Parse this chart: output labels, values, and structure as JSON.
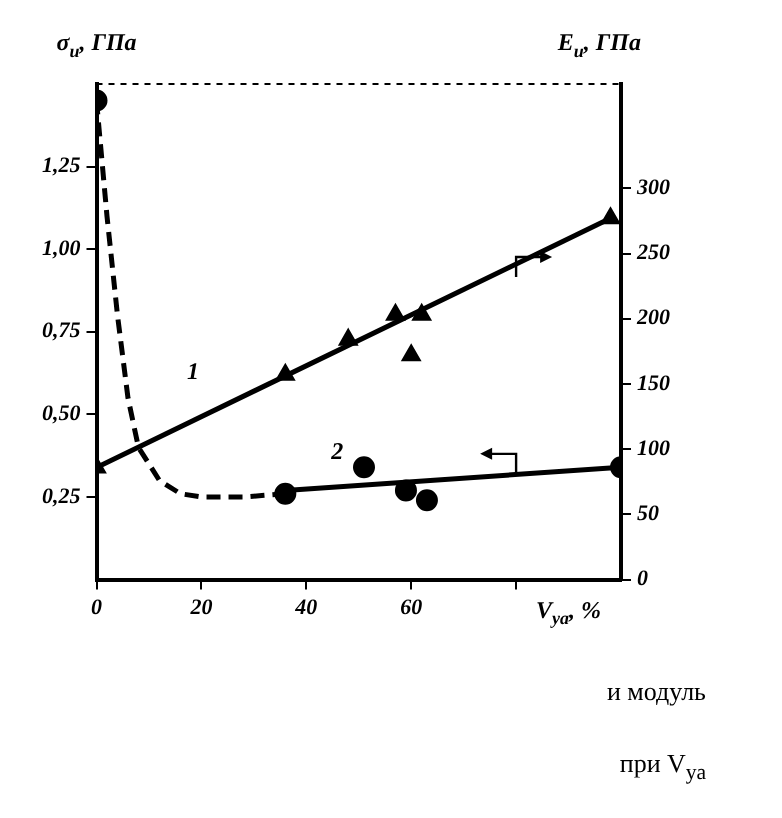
{
  "chart_data": {
    "type": "line",
    "xlabel": "V$_{уа}$, %",
    "ylabel": "σ$_{и}$, ГПа",
    "y2label": "E$_{и}$, ГПа",
    "xlim": [
      0,
      100
    ],
    "xticks": [
      0,
      20,
      40,
      60,
      {
        "value": 80,
        "label": null
      }
    ],
    "ylim": [
      0,
      1.5
    ],
    "yticks": [
      {
        "value": 0.25,
        "label": "0,25"
      },
      {
        "value": 0.5,
        "label": "0,50"
      },
      {
        "value": 0.75,
        "label": "0,75"
      },
      {
        "value": 1,
        "label": "1,00"
      },
      {
        "value": 1.25,
        "label": "1,25"
      }
    ],
    "y2lim": [
      0,
      380
    ],
    "y2ticks": [
      0,
      50,
      100,
      150,
      200,
      250,
      300
    ],
    "series": [
      {
        "type": "scatter",
        "axis": "y2",
        "marker": "triangle",
        "color": "#000000",
        "x": [
          0,
          36,
          48,
          57,
          62,
          60,
          98
        ],
        "values": [
          86,
          157,
          184,
          203,
          203,
          172,
          277
        ]
      },
      {
        "name": "1",
        "axis": "y2",
        "marker": "none",
        "line_style": "solid",
        "color": "#000000",
        "x": [
          0,
          98
        ],
        "values": [
          86,
          277
        ]
      },
      {
        "type": "scatter",
        "axis": "y",
        "marker": "circle",
        "color": "#000000",
        "x": [
          0,
          36,
          51,
          59,
          63,
          100
        ],
        "values": [
          1.45,
          0.26,
          0.34,
          0.27,
          0.24,
          0.34
        ]
      },
      {
        "axis": "y",
        "marker": "none",
        "line_style": "dashed",
        "color": "#000000",
        "x": [
          0,
          2,
          4,
          6,
          8,
          12,
          16,
          20,
          28,
          36
        ],
        "values": [
          1.45,
          1.1,
          0.8,
          0.55,
          0.4,
          0.3,
          0.26,
          0.25,
          0.25,
          0.26
        ]
      },
      {
        "name": "2",
        "axis": "y",
        "marker": "none",
        "line_style": "solid",
        "color": "#000000",
        "x": [
          36,
          100
        ],
        "values": [
          0.27,
          0.34
        ]
      }
    ],
    "annotations": [
      "и модуль",
      "при V$_{уа}$"
    ]
  }
}
